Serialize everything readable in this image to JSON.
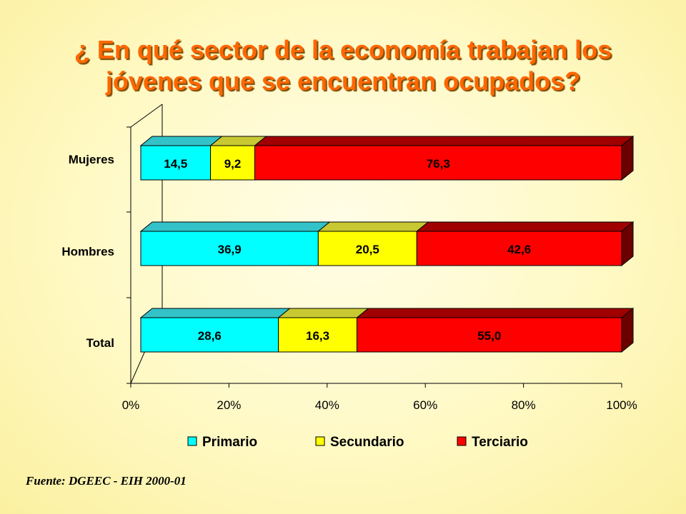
{
  "title": "¿ En qué sector de la economía trabajan los jóvenes que se encuentran ocupados?",
  "source": "Fuente: DGEEC - EIH 2000-01",
  "colors": {
    "title": "#ff6600",
    "primario": "#00ffff",
    "secundario": "#ffff00",
    "terciario": "#ff0000"
  },
  "chart_data": {
    "type": "bar",
    "orientation": "horizontal",
    "stacked": "percent",
    "categories": [
      "Mujeres",
      "Hombres",
      "Total"
    ],
    "series": [
      {
        "name": "Primario",
        "values": [
          14.5,
          36.9,
          28.6
        ],
        "labels": [
          "14,5",
          "36,9",
          "28,6"
        ]
      },
      {
        "name": "Secundario",
        "values": [
          9.2,
          20.5,
          16.3
        ],
        "labels": [
          "9,2",
          "20,5",
          "16,3"
        ]
      },
      {
        "name": "Terciario",
        "values": [
          76.3,
          42.6,
          55.0
        ],
        "labels": [
          "76,3",
          "42,6",
          "55,0"
        ]
      }
    ],
    "xlim": [
      0,
      100
    ],
    "xticks": [
      "0%",
      "20%",
      "40%",
      "60%",
      "80%",
      "100%"
    ],
    "legend": "bottom",
    "grid": false
  }
}
